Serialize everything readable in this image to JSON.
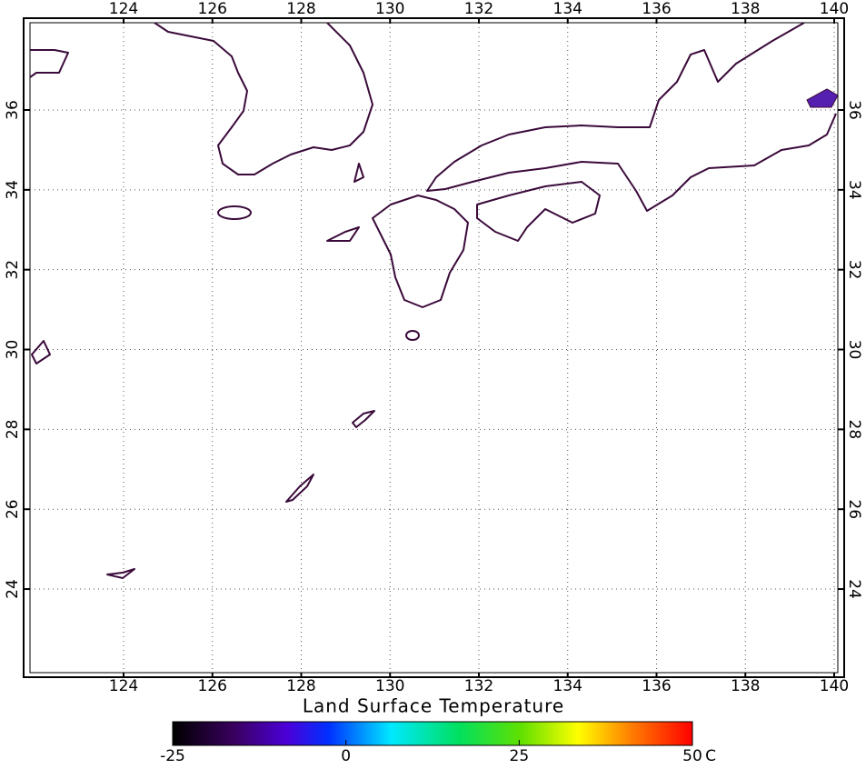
{
  "map": {
    "title": "Land Surface Temperature",
    "lon_ticks": [
      124,
      126,
      128,
      130,
      132,
      134,
      136,
      138,
      140
    ],
    "lat_ticks": [
      24,
      26,
      28,
      30,
      32,
      34,
      36
    ],
    "colorbar": {
      "ticks": [
        -25,
        0,
        25,
        50
      ],
      "unit": "C"
    }
  }
}
